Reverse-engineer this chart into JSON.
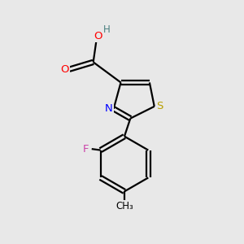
{
  "background_color": "#e8e8e8",
  "atom_colors": {
    "C": "#000000",
    "H": "#4a8080",
    "O": "#ff0000",
    "N": "#0000ff",
    "S": "#b8a000",
    "F": "#cc44aa"
  },
  "lw": 1.6
}
